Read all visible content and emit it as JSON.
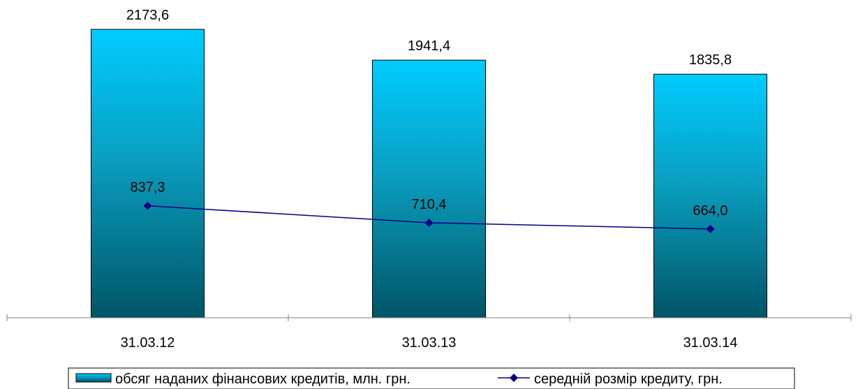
{
  "chart_data": {
    "type": "bar",
    "categories": [
      "31.03.12",
      "31.03.13",
      "31.03.14"
    ],
    "series": [
      {
        "name": "обсяг наданих фінансових кредитів, млн. грн.",
        "type": "bar",
        "axis": "primary",
        "values": [
          2173.6,
          1941.4,
          1835.8
        ],
        "labels": [
          "2173,6",
          "1941,4",
          "1835,8"
        ]
      },
      {
        "name": "середній розмір кредиту, грн.",
        "type": "line",
        "axis": "secondary",
        "values": [
          837.3,
          710.4,
          664.0
        ],
        "labels": [
          "837,3",
          "710,4",
          "664,0"
        ]
      }
    ],
    "legend_position": "bottom",
    "grid": false,
    "colors": {
      "bar_top": "#00CCFF",
      "bar_bottom": "#005566",
      "bar_border": "#000000",
      "line": "#000080",
      "axis": "#808080"
    }
  }
}
